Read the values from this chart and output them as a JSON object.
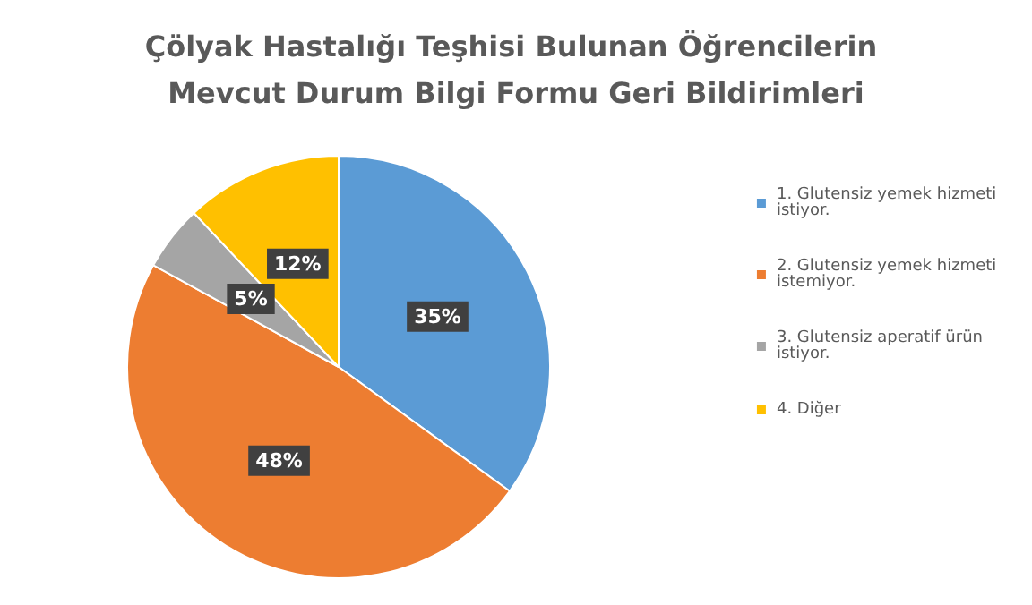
{
  "chart_data": {
    "type": "pie",
    "title": "Çölyak Hastalığı Teşhisi Bulunan Öğrencilerin Mevcut Durum Bilgi Formu Geri Bildirimleri",
    "categories": [
      "1. Glutensiz yemek hizmeti istiyor.",
      "2. Glutensiz yemek hizmeti istemiyor.",
      "3. Glutensiz aperatif ürün istiyor.",
      "4. Diğer"
    ],
    "values": [
      35,
      48,
      5,
      12
    ],
    "colors": [
      "#5b9bd5",
      "#ed7d31",
      "#a5a5a5",
      "#ffc000"
    ],
    "value_labels": [
      "35%",
      "48%",
      "5%",
      "12%"
    ],
    "legend": "right"
  }
}
